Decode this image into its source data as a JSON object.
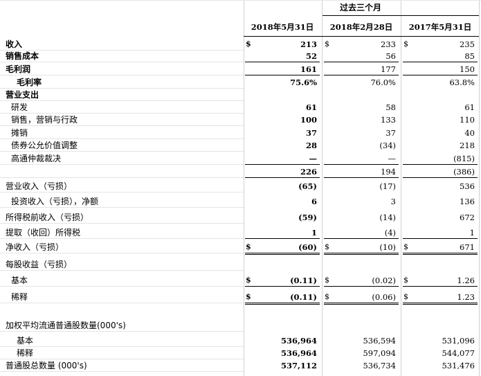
{
  "header": {
    "period_title": "过去三个月",
    "columns": [
      "2018年5月31日",
      "2018年2月28日",
      "2017年5月31日"
    ]
  },
  "rows": [
    {
      "label": "收入",
      "bold": true,
      "indent": 0,
      "dollar": true,
      "values": [
        "213",
        "233",
        "235"
      ]
    },
    {
      "label": "销售成本",
      "bold": true,
      "indent": 0,
      "values": [
        "52",
        "56",
        "85"
      ]
    },
    {
      "label": "毛利润",
      "bold": true,
      "indent": 0,
      "values": [
        "161",
        "177",
        "150"
      ]
    },
    {
      "label": "毛利率",
      "bold": true,
      "indent": 2,
      "values": [
        "75.6%",
        "76.0%",
        "63.8%"
      ]
    },
    {
      "label": "营业支出",
      "bold": true,
      "indent": 0,
      "values": [
        "",
        "",
        ""
      ]
    },
    {
      "label": "研发",
      "bold": false,
      "indent": 1,
      "values": [
        "61",
        "58",
        "61"
      ]
    },
    {
      "label": "销售，营销与行政",
      "bold": false,
      "indent": 1,
      "values": [
        "100",
        "133",
        "110"
      ]
    },
    {
      "label": "摊销",
      "bold": false,
      "indent": 1,
      "values": [
        "37",
        "37",
        "40"
      ]
    },
    {
      "label": "债券公允价值调整",
      "bold": false,
      "indent": 1,
      "values": [
        "28",
        "(34)",
        "218"
      ]
    },
    {
      "label": "高通仲裁裁决",
      "bold": false,
      "indent": 1,
      "values": [
        "—",
        "—",
        "(815)"
      ]
    },
    {
      "label": "",
      "bold": false,
      "indent": 0,
      "values": [
        "226",
        "194",
        "(386)"
      ]
    },
    {
      "label": "营业收入（亏损）",
      "bold": false,
      "indent": 0,
      "values": [
        "(65)",
        "(17)",
        "536"
      ]
    },
    {
      "label": "投资收入（亏损），净额",
      "bold": false,
      "indent": 1,
      "values": [
        "6",
        "3",
        "136"
      ]
    },
    {
      "label": "所得税前收入（亏损）",
      "bold": false,
      "indent": 0,
      "values": [
        "(59)",
        "(14)",
        "672"
      ]
    },
    {
      "label": "提取（收回）所得税",
      "bold": false,
      "indent": 0,
      "values": [
        "1",
        "(4)",
        "1"
      ]
    },
    {
      "label": "净收入（亏损）",
      "bold": false,
      "indent": 0,
      "dollar": true,
      "values": [
        "(60)",
        "(10)",
        "671"
      ]
    },
    {
      "label": "每股收益（亏损）",
      "bold": false,
      "indent": 0,
      "values": [
        "",
        "",
        ""
      ]
    },
    {
      "label": "基本",
      "bold": false,
      "indent": 1,
      "dollar": true,
      "values": [
        "(0.11)",
        "(0.02)",
        "1.26"
      ]
    },
    {
      "label": "稀释",
      "bold": false,
      "indent": 1,
      "dollar": true,
      "values": [
        "(0.11)",
        "(0.06)",
        "1.23"
      ]
    },
    {
      "label": "加权平均流通普通股数量(000's)",
      "bold": false,
      "indent": 0,
      "values": [
        "",
        "",
        ""
      ]
    },
    {
      "label": "基本",
      "bold": false,
      "indent": 2,
      "values": [
        "536,964",
        "536,594",
        "531,096"
      ]
    },
    {
      "label": "稀释",
      "bold": false,
      "indent": 2,
      "values": [
        "536,964",
        "597,094",
        "544,077"
      ]
    },
    {
      "label": "普通股总数量 (000's)",
      "bold": false,
      "indent": 0,
      "values": [
        "537,112",
        "536,734",
        "531,476"
      ]
    }
  ],
  "currency_symbol": "$"
}
